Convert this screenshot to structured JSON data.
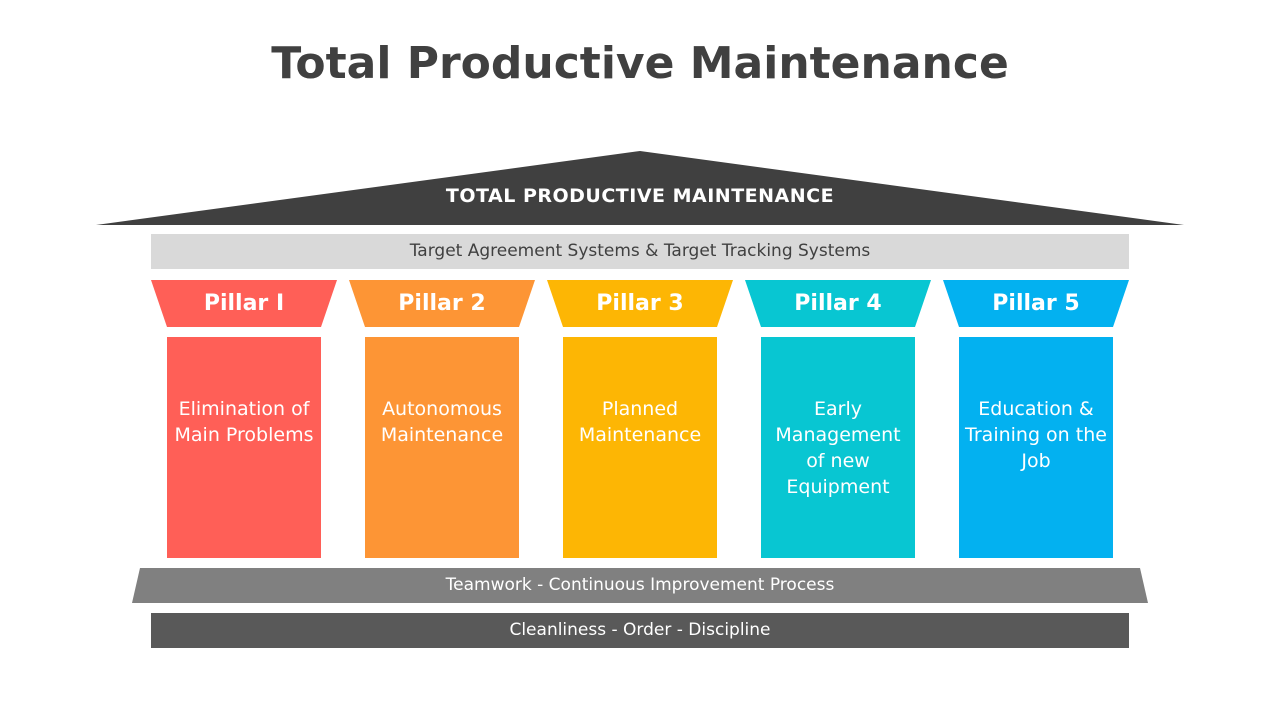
{
  "title": "Total Productive Maintenance",
  "roof": {
    "label": "TOTAL PRODUCTIVE MAINTENANCE",
    "color": "#404040"
  },
  "target_band": {
    "label": "Target Agreement Systems & Target Tracking Systems",
    "color": "#d9d9d9"
  },
  "pillars": [
    {
      "label": "Pillar I",
      "text": "Elimination of Main Problems",
      "color": "#ff5f57"
    },
    {
      "label": "Pillar 2",
      "text": "Autonomous Maintenance",
      "color": "#fd9535"
    },
    {
      "label": "Pillar 3",
      "text": "Planned Maintenance",
      "color": "#fdb604"
    },
    {
      "label": "Pillar 4",
      "text": "Early Management of new Equipment",
      "color": "#08c6d2"
    },
    {
      "label": "Pillar 5",
      "text": "Education & Training on the Job",
      "color": "#03b1f0"
    }
  ],
  "teamwork_band": {
    "label": "Teamwork - Continuous Improvement Process",
    "color": "#808080"
  },
  "base_band": {
    "label": "Cleanliness - Order - Discipline",
    "color": "#595959"
  }
}
